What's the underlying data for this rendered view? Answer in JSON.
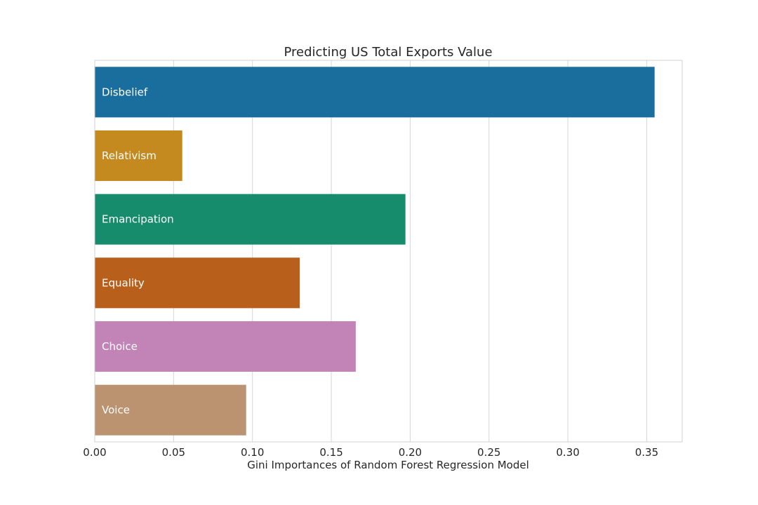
{
  "chart_data": {
    "type": "bar",
    "orientation": "horizontal",
    "title": "Predicting US Total Exports Value",
    "xlabel": "Gini Importances of Random Forest Regression Model",
    "ylabel": "",
    "xlim": [
      0,
      0.3725
    ],
    "x_ticks": [
      "0.00",
      "0.05",
      "0.10",
      "0.15",
      "0.20",
      "0.25",
      "0.30",
      "0.35"
    ],
    "grid": true,
    "legend": "none",
    "categories": [
      "Disbelief",
      "Relativism",
      "Emancipation",
      "Equality",
      "Choice",
      "Voice"
    ],
    "values": [
      0.355,
      0.0555,
      0.197,
      0.13,
      0.1655,
      0.096
    ],
    "colors": [
      "#1a6e9e",
      "#c4891f",
      "#178c6c",
      "#b85f1b",
      "#c283b6",
      "#bb9370"
    ]
  }
}
